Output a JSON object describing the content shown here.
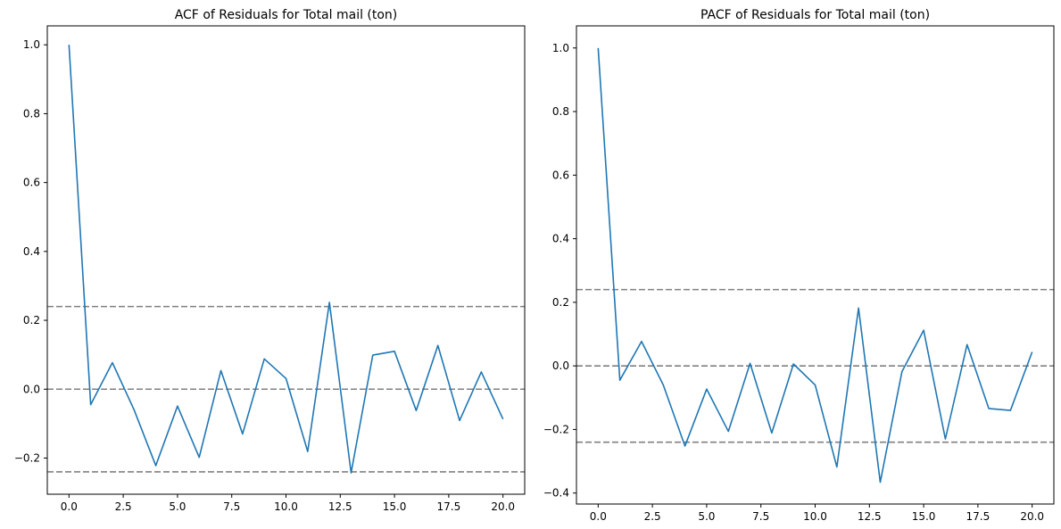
{
  "chart_data": [
    {
      "type": "line",
      "title": "ACF of Residuals for Total mail (ton)",
      "xlabel": "",
      "ylabel": "",
      "xlim": [
        -1,
        21
      ],
      "ylim": [
        -0.305,
        1.055
      ],
      "xticks": [
        0,
        2.5,
        5,
        7.5,
        10,
        12.5,
        15,
        17.5,
        20
      ],
      "xtick_labels": [
        "0.0",
        "2.5",
        "5.0",
        "7.5",
        "10.0",
        "12.5",
        "15.0",
        "17.5",
        "20.0"
      ],
      "yticks": [
        -0.2,
        0.0,
        0.2,
        0.4,
        0.6,
        0.8,
        1.0
      ],
      "ytick_labels": [
        "−0.2",
        "0.0",
        "0.2",
        "0.4",
        "0.6",
        "0.8",
        "1.0"
      ],
      "grid": false,
      "series": [
        {
          "color": "#1f77b4",
          "x": [
            0,
            1,
            2,
            3,
            4,
            5,
            6,
            7,
            8,
            9,
            10,
            11,
            12,
            13,
            14,
            15,
            16,
            17,
            18,
            19,
            20
          ],
          "values": [
            1.0,
            -0.045,
            0.077,
            -0.06,
            -0.222,
            -0.049,
            -0.198,
            0.054,
            -0.13,
            0.088,
            0.031,
            -0.181,
            0.252,
            -0.243,
            0.099,
            0.11,
            -0.062,
            0.127,
            -0.091,
            0.05,
            -0.087
          ]
        }
      ],
      "reference_lines": [
        {
          "y": 0.24,
          "color": "#808080",
          "style": "dashed"
        },
        {
          "y": 0.0,
          "color": "#808080",
          "style": "dashed"
        },
        {
          "y": -0.24,
          "color": "#808080",
          "style": "dashed"
        }
      ]
    },
    {
      "type": "line",
      "title": "PACF of Residuals for Total mail (ton)",
      "xlabel": "",
      "ylabel": "",
      "xlim": [
        -1,
        21
      ],
      "ylim": [
        -0.4345,
        1.0695
      ],
      "xticks": [
        0,
        2.5,
        5,
        7.5,
        10,
        12.5,
        15,
        17.5,
        20
      ],
      "xtick_labels": [
        "0.0",
        "2.5",
        "5.0",
        "7.5",
        "10.0",
        "12.5",
        "15.0",
        "17.5",
        "20.0"
      ],
      "yticks": [
        -0.4,
        -0.2,
        0.0,
        0.2,
        0.4,
        0.6,
        0.8,
        1.0
      ],
      "ytick_labels": [
        "−0.4",
        "−0.2",
        "0.0",
        "0.2",
        "0.4",
        "0.6",
        "0.8",
        "1.0"
      ],
      "grid": false,
      "series": [
        {
          "color": "#1f77b4",
          "x": [
            0,
            1,
            2,
            3,
            4,
            5,
            6,
            7,
            8,
            9,
            10,
            11,
            12,
            13,
            14,
            15,
            16,
            17,
            18,
            19,
            20
          ],
          "values": [
            1.0,
            -0.045,
            0.077,
            -0.06,
            -0.252,
            -0.073,
            -0.206,
            0.008,
            -0.211,
            0.006,
            -0.06,
            -0.318,
            0.182,
            -0.366,
            -0.018,
            0.112,
            -0.23,
            0.067,
            -0.134,
            -0.14,
            0.044
          ]
        }
      ],
      "reference_lines": [
        {
          "y": 0.24,
          "color": "#808080",
          "style": "dashed"
        },
        {
          "y": 0.0,
          "color": "#808080",
          "style": "dashed"
        },
        {
          "y": -0.24,
          "color": "#808080",
          "style": "dashed"
        }
      ]
    }
  ]
}
